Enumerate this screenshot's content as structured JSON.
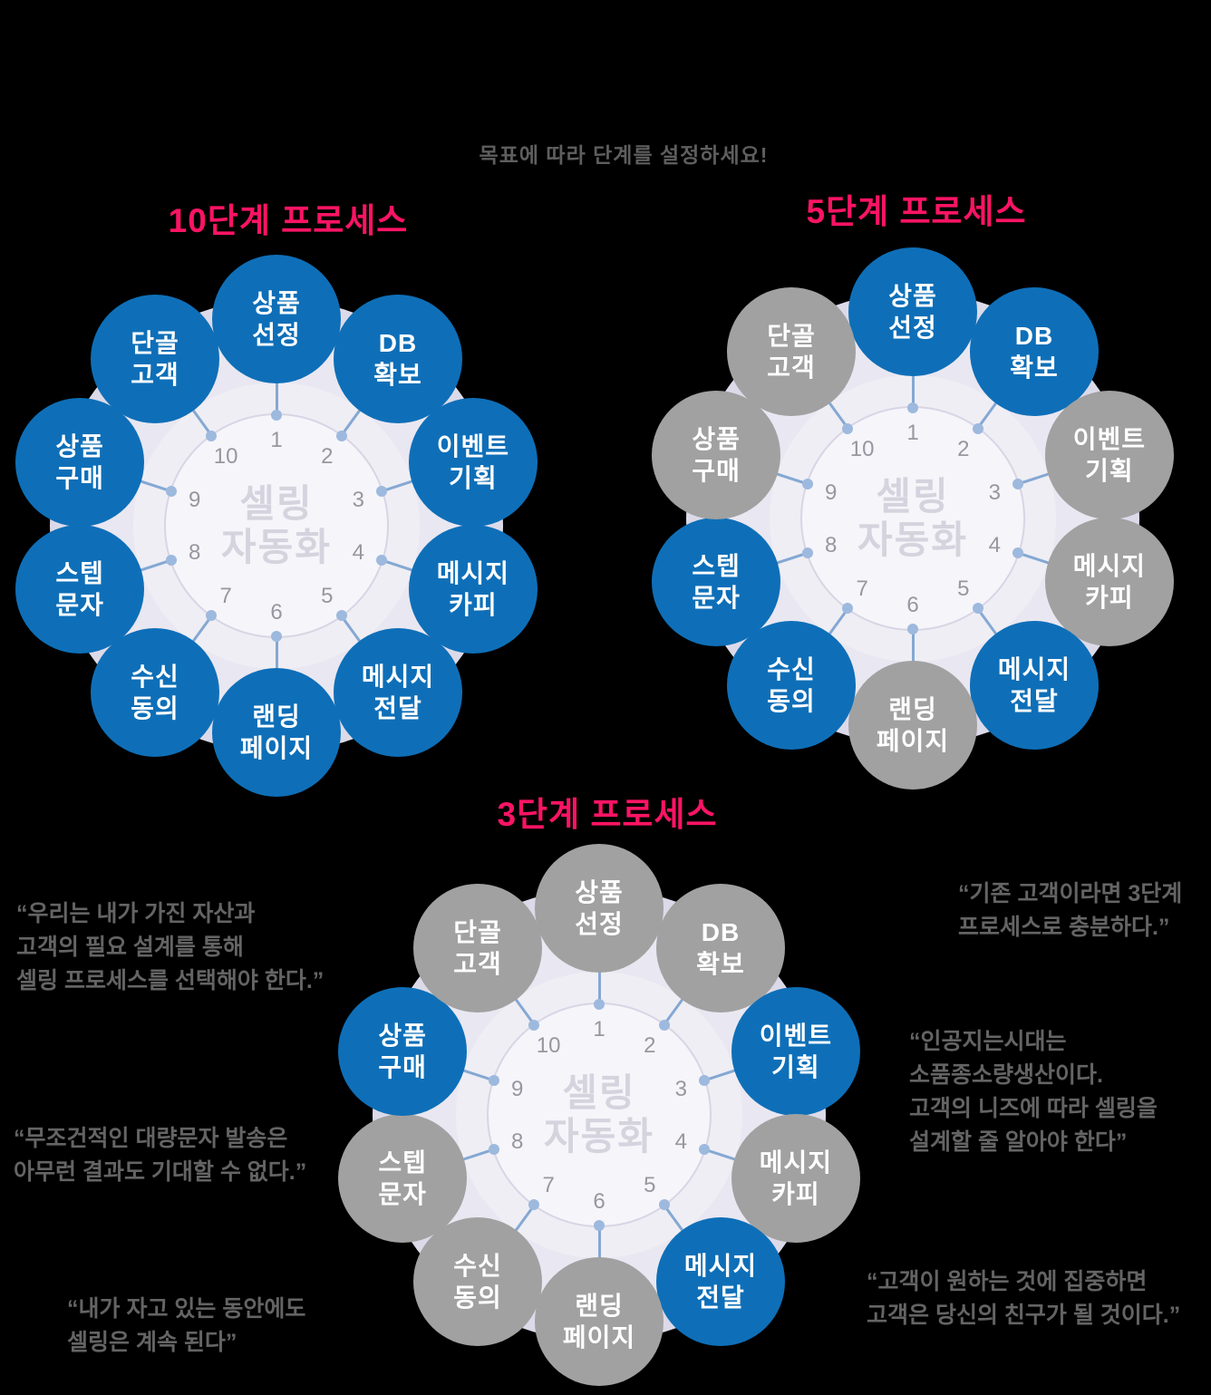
{
  "instruction": "목표에 따라 단계를 설정하세요!",
  "hub_label": {
    "lines": [
      "셀링",
      "자동화"
    ]
  },
  "steps": [
    {
      "num": "1",
      "lines": [
        "상품",
        "선정"
      ]
    },
    {
      "num": "2",
      "lines": [
        "DB",
        "확보"
      ]
    },
    {
      "num": "3",
      "lines": [
        "이벤트",
        "기획"
      ]
    },
    {
      "num": "4",
      "lines": [
        "메시지",
        "카피"
      ]
    },
    {
      "num": "5",
      "lines": [
        "메시지",
        "전달"
      ]
    },
    {
      "num": "6",
      "lines": [
        "랜딩",
        "페이지"
      ]
    },
    {
      "num": "7",
      "lines": [
        "수신",
        "동의"
      ]
    },
    {
      "num": "8",
      "lines": [
        "스텝",
        "문자"
      ]
    },
    {
      "num": "9",
      "lines": [
        "상품",
        "구매"
      ]
    },
    {
      "num": "10",
      "lines": [
        "단골",
        "고객"
      ]
    }
  ],
  "diagrams": [
    {
      "id": "10step",
      "title": "10단계 프로세스",
      "active_steps": [
        1,
        2,
        3,
        4,
        5,
        6,
        7,
        8,
        9,
        10
      ]
    },
    {
      "id": "5step",
      "title": "5단계 프로세스",
      "active_steps": [
        1,
        2,
        5,
        7,
        8
      ]
    },
    {
      "id": "3step",
      "title": "3단계 프로세스",
      "active_steps": [
        3,
        5,
        9
      ]
    }
  ],
  "quotes": [
    {
      "lines": [
        "“우리는 내가 가진 자산과",
        "고객의 필요 설계를 통해",
        "셀링 프로세스를 선택해야 한다.”"
      ]
    },
    {
      "lines": [
        "“기존 고객이라면 3단계",
        "프로세스로 충분하다.”"
      ]
    },
    {
      "lines": [
        "“인공지는시대는",
        "소품종소량생산이다.",
        "고객의 니즈에 따라 셀링을",
        "설계할 줄 알아야 한다”"
      ]
    },
    {
      "lines": [
        "“무조건적인 대량문자 발송은",
        "아무런 결과도 기대할 수 없다.”"
      ]
    },
    {
      "lines": [
        "“내가 자고 있는 동안에도",
        "셀링은 계속 된다”"
      ]
    },
    {
      "lines": [
        "“고객이 원하는 것에 집중하면",
        "고객은 당신의 친구가 될 것이다.”"
      ]
    }
  ],
  "colors": {
    "background": "#000000",
    "active_node": "#0e6fb8",
    "inactive_node": "#a1a1a1",
    "node_text": "#ffffff",
    "title_pink": "#fb1464",
    "quote_gray": "#646464",
    "instruction_gray": "#5e5e5e",
    "hub_text": "#d5d3dd",
    "number_gray": "#98969f",
    "dot_blue": "#9db9de",
    "line_blue": "#84a8d3",
    "ring_outer": "#dcdae9",
    "ring_mid": "#e9e7f1",
    "ring_light": "#efeef4",
    "hub_fill": "#f6f5fa"
  }
}
